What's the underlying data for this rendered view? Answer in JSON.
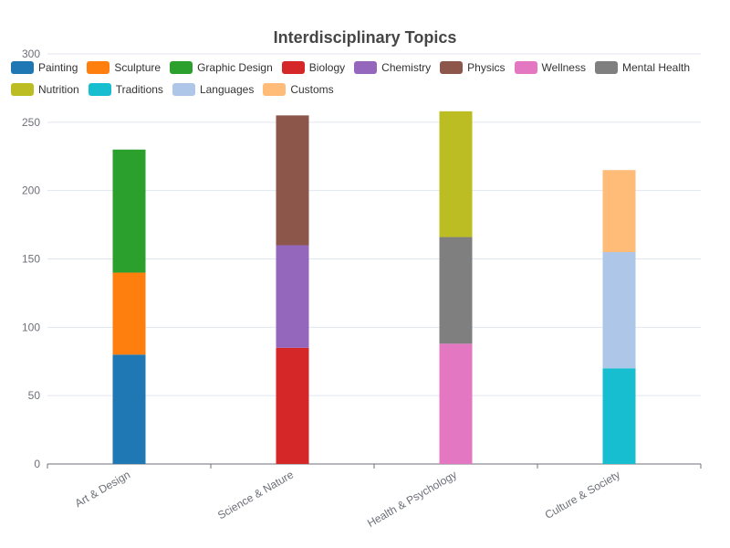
{
  "chart_data": {
    "type": "bar",
    "stacked": true,
    "title": "Interdisciplinary Topics",
    "categories": [
      "Art & Design",
      "Science & Nature",
      "Health & Psychology",
      "Culture & Society"
    ],
    "ylim": [
      0,
      300
    ],
    "yticks": [
      0,
      50,
      100,
      150,
      200,
      250,
      300
    ],
    "grid": true,
    "legend_position": "top",
    "series": [
      {
        "name": "Painting",
        "color": "#1f77b4",
        "values": [
          80,
          null,
          null,
          null
        ]
      },
      {
        "name": "Sculpture",
        "color": "#ff7f0e",
        "values": [
          60,
          null,
          null,
          null
        ]
      },
      {
        "name": "Graphic Design",
        "color": "#2ca02c",
        "values": [
          90,
          null,
          null,
          null
        ]
      },
      {
        "name": "Biology",
        "color": "#d62728",
        "values": [
          null,
          85,
          null,
          null
        ]
      },
      {
        "name": "Chemistry",
        "color": "#9467bd",
        "values": [
          null,
          75,
          null,
          null
        ]
      },
      {
        "name": "Physics",
        "color": "#8c564b",
        "values": [
          null,
          95,
          null,
          null
        ]
      },
      {
        "name": "Wellness",
        "color": "#e377c2",
        "values": [
          null,
          null,
          88,
          null
        ]
      },
      {
        "name": "Mental Health",
        "color": "#7f7f7f",
        "values": [
          null,
          null,
          78,
          null
        ]
      },
      {
        "name": "Nutrition",
        "color": "#bcbd22",
        "values": [
          null,
          null,
          92,
          null
        ]
      },
      {
        "name": "Traditions",
        "color": "#17becf",
        "values": [
          null,
          null,
          null,
          70
        ]
      },
      {
        "name": "Languages",
        "color": "#aec7e8",
        "values": [
          null,
          null,
          null,
          85
        ]
      },
      {
        "name": "Customs",
        "color": "#ffbb78",
        "values": [
          null,
          null,
          null,
          60
        ]
      }
    ]
  }
}
